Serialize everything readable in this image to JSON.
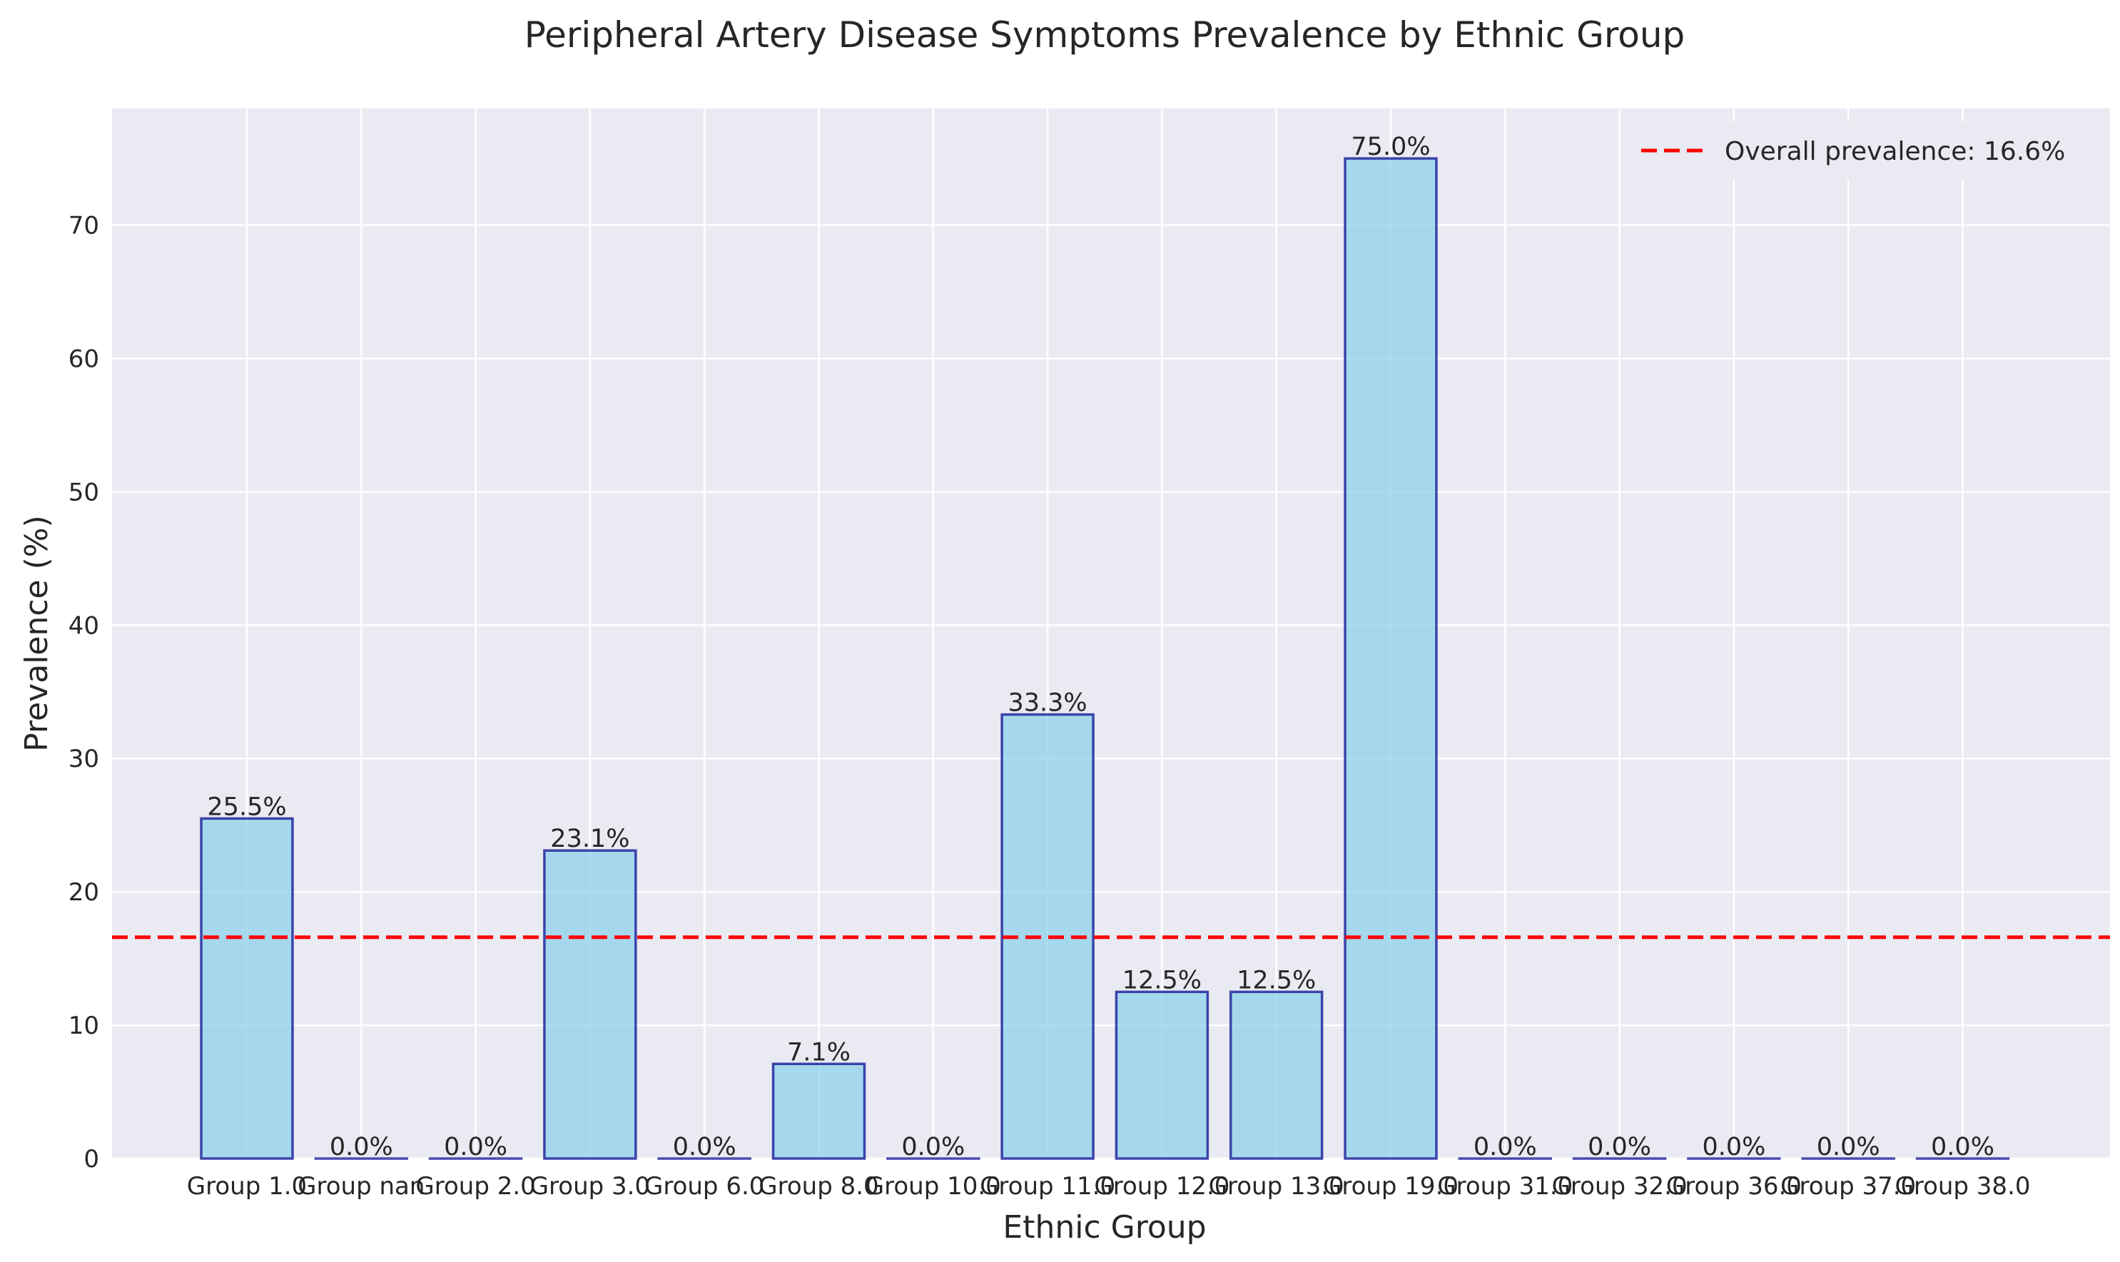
{
  "chart_data": {
    "type": "bar",
    "title": "Peripheral Artery Disease Symptoms Prevalence by Ethnic Group",
    "xlabel": "Ethnic Group",
    "ylabel": "Prevalence (%)",
    "categories": [
      "Group 1.0",
      "Group nan",
      "Group 2.0",
      "Group 3.0",
      "Group 6.0",
      "Group 8.0",
      "Group 10.0",
      "Group 11.0",
      "Group 12.0",
      "Group 13.0",
      "Group 19.0",
      "Group 31.0",
      "Group 32.0",
      "Group 36.0",
      "Group 37.0",
      "Group 38.0"
    ],
    "values": [
      25.5,
      0.0,
      0.0,
      23.1,
      0.0,
      7.1,
      0.0,
      33.3,
      12.5,
      12.5,
      75.0,
      0.0,
      0.0,
      0.0,
      0.0,
      0.0
    ],
    "data_labels": [
      "25.5%",
      "0.0%",
      "0.0%",
      "23.1%",
      "0.0%",
      "7.1%",
      "0.0%",
      "33.3%",
      "12.5%",
      "12.5%",
      "75.0%",
      "0.0%",
      "0.0%",
      "0.0%",
      "0.0%",
      "0.0%"
    ],
    "ylim": [
      0,
      78.75
    ],
    "yticks": [
      0,
      10,
      20,
      30,
      40,
      50,
      60,
      70
    ],
    "reference_line": {
      "value": 16.6,
      "label": "Overall prevalence: 16.6%",
      "style": "dashed"
    },
    "legend": {
      "placement": "top-right",
      "entries": [
        "Overall prevalence: 16.6%"
      ]
    },
    "grid": true,
    "colors": {
      "bar_fill": "#87ceeb",
      "bar_edge": "#00008b",
      "reference_line": "#ff0000",
      "plot_background": "#eaeaf2",
      "grid": "#ffffff",
      "text": "#262626"
    }
  }
}
